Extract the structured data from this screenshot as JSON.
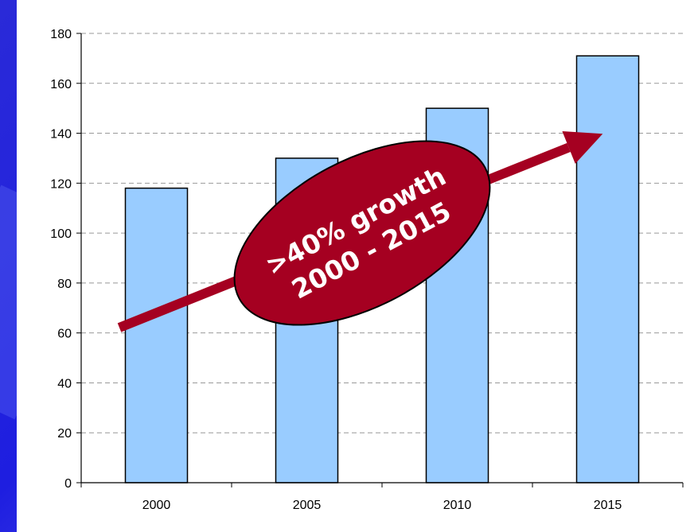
{
  "chart_data": {
    "type": "bar",
    "categories": [
      "2000",
      "2005",
      "2010",
      "2015"
    ],
    "values": [
      118,
      130,
      150,
      171
    ],
    "title": "",
    "xlabel": "",
    "ylabel": "",
    "ylim": [
      0,
      180
    ],
    "yticks": [
      "0",
      "20",
      "40",
      "60",
      "80",
      "100",
      "120",
      "140",
      "160",
      "180"
    ],
    "grid": "horizontal-dashed",
    "bar_color": "#99ccff",
    "annotation": {
      "line1": ">40% growth",
      "line2": "2000 - 2015",
      "color": "#a50021"
    }
  }
}
